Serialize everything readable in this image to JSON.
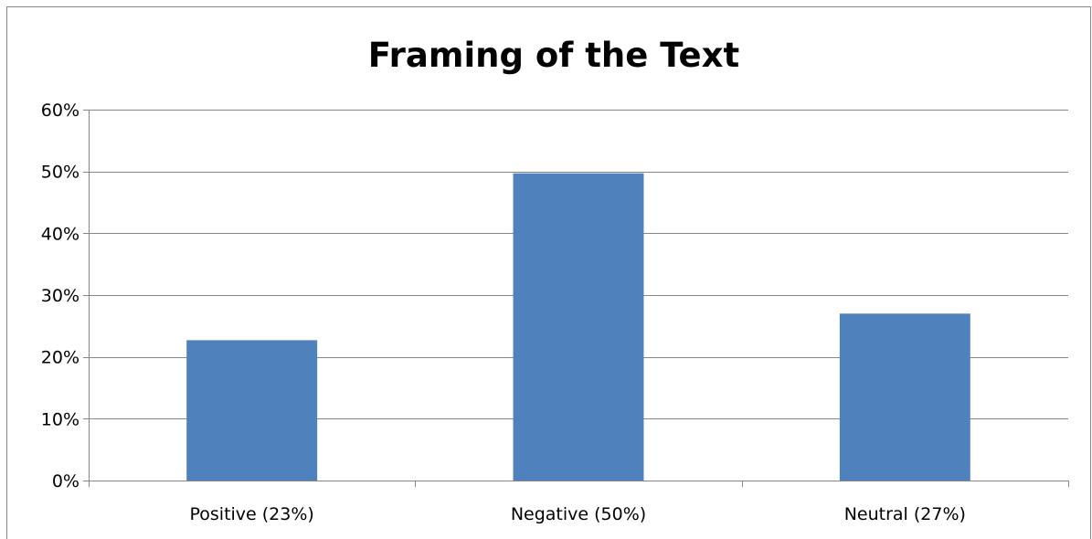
{
  "chart_data": {
    "type": "bar",
    "title": "Framing of the Text",
    "categories": [
      "Positive (23%)",
      "Negative (50%)",
      "Neutral (27%)"
    ],
    "values": [
      22.7,
      49.7,
      27.0
    ],
    "ylim": [
      0,
      60
    ],
    "yticks": [
      0,
      10,
      20,
      30,
      40,
      50,
      60
    ],
    "ytick_labels": [
      "0%",
      "10%",
      "20%",
      "30%",
      "40%",
      "50%",
      "60%"
    ],
    "xlabel": "",
    "ylabel": "",
    "grid": true,
    "legend": "none",
    "bar_color": "#4F81BD",
    "grid_color": "#868686"
  }
}
